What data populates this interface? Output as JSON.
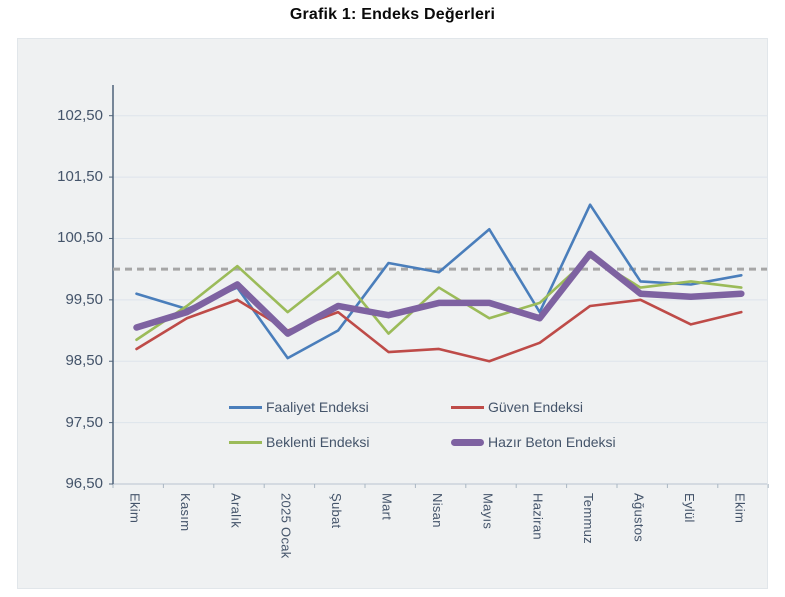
{
  "page": {
    "title": "Grafik 1: Endeks Değerleri"
  },
  "chart_data": {
    "type": "line",
    "title": "Grafik 1: Endeks Değerleri",
    "categories": [
      "Ekim",
      "Kasım",
      "Aralık",
      "2025 Ocak",
      "Şubat",
      "Mart",
      "Nisan",
      "Mayıs",
      "Haziran",
      "Temmuz",
      "Ağustos",
      "Eylül",
      "Ekim"
    ],
    "y_ticks": [
      "102,50",
      "101,50",
      "100,50",
      "99,50",
      "98,50",
      "97,50",
      "96,50"
    ],
    "y_tick_values": [
      102.5,
      101.5,
      100.5,
      99.5,
      98.5,
      97.5,
      96.5
    ],
    "ylim": [
      96.5,
      103.0
    ],
    "grid": true,
    "legend_position": "inside-bottom-two-columns",
    "reference_line": {
      "value": 100.0,
      "style": "dashed",
      "color": "#A6A6A6"
    },
    "colors": {
      "plot_background": "#eff1f2",
      "gridline": "#dde4eb",
      "y_axis_line": "#4f637a",
      "x_axis_line": "#c3cdd7",
      "tick_label": "#44546A"
    },
    "series": [
      {
        "name": "Faaliyet Endeksi",
        "color": "#4A7EBB",
        "width": 2.6,
        "values": [
          99.6,
          99.35,
          99.7,
          98.55,
          99.0,
          100.1,
          99.95,
          100.65,
          99.3,
          101.05,
          99.8,
          99.75,
          99.9
        ]
      },
      {
        "name": "Güven Endeksi",
        "color": "#BE4B48",
        "width": 2.6,
        "values": [
          98.7,
          99.2,
          99.5,
          99.0,
          99.3,
          98.65,
          98.7,
          98.5,
          98.8,
          99.4,
          99.5,
          99.1,
          99.3
        ]
      },
      {
        "name": "Beklenti Endeksi",
        "color": "#9BBB59",
        "width": 2.6,
        "values": [
          98.85,
          99.4,
          100.05,
          99.3,
          99.95,
          98.95,
          99.7,
          99.2,
          99.45,
          100.2,
          99.7,
          99.8,
          99.7
        ]
      },
      {
        "name": "Hazır Beton Endeksi",
        "color": "#7E62A1",
        "width": 6.5,
        "values": [
          99.05,
          99.3,
          99.75,
          98.95,
          99.4,
          99.25,
          99.45,
          99.45,
          99.2,
          100.25,
          99.6,
          99.55,
          99.6
        ]
      }
    ]
  }
}
